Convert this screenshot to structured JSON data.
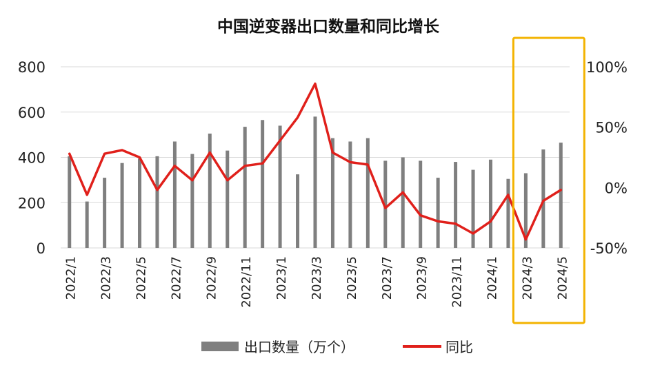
{
  "chart_data": {
    "type": "bar",
    "title": "中国逆变器出口数量和同比增长",
    "categories": [
      "2022/1",
      "2022/2",
      "2022/3",
      "2022/4",
      "2022/5",
      "2022/6",
      "2022/7",
      "2022/8",
      "2022/9",
      "2022/10",
      "2022/11",
      "2022/12",
      "2023/1",
      "2023/2",
      "2023/3",
      "2023/4",
      "2023/5",
      "2023/6",
      "2023/7",
      "2023/8",
      "2023/9",
      "2023/10",
      "2023/11",
      "2023/12",
      "2024/1",
      "2024/2",
      "2024/3",
      "2024/4",
      "2024/5"
    ],
    "x_tick_labels": [
      "2022/1",
      "2022/3",
      "2022/5",
      "2022/7",
      "2022/9",
      "2022/11",
      "2023/1",
      "2023/3",
      "2023/5",
      "2023/7",
      "2023/9",
      "2023/11",
      "2024/1",
      "2024/3",
      "2024/5"
    ],
    "series": [
      {
        "name": "出口数量（万个）",
        "type": "bar",
        "axis": "left",
        "color": "#7f7f7f",
        "values": [
          405,
          205,
          310,
          375,
          395,
          405,
          470,
          415,
          505,
          430,
          535,
          565,
          540,
          325,
          580,
          485,
          470,
          485,
          385,
          400,
          385,
          310,
          380,
          345,
          390,
          305,
          330,
          435,
          465
        ]
      },
      {
        "name": "同比",
        "type": "line",
        "axis": "right",
        "color": "#e0201b",
        "values": [
          28,
          -6,
          28,
          31,
          25,
          -2,
          18,
          6,
          29,
          6,
          18,
          20,
          39,
          58,
          86,
          29,
          21,
          19,
          -17,
          -4,
          -23,
          -28,
          -30,
          -38,
          -28,
          -6,
          -43,
          -11,
          -2
        ]
      }
    ],
    "y_left": {
      "lim": [
        0,
        800
      ],
      "ticks": [
        0,
        200,
        400,
        600,
        800
      ]
    },
    "y_right": {
      "lim": [
        -50,
        100
      ],
      "ticks": [
        -50,
        0,
        50,
        100
      ],
      "tick_labels": [
        "-50%",
        "0%",
        "50%",
        "100%"
      ]
    },
    "grid": "horizontal",
    "legend": {
      "position": "bottom"
    },
    "highlight": {
      "from": "2024/3",
      "to": "2024/5",
      "color": "#f3b300"
    }
  }
}
